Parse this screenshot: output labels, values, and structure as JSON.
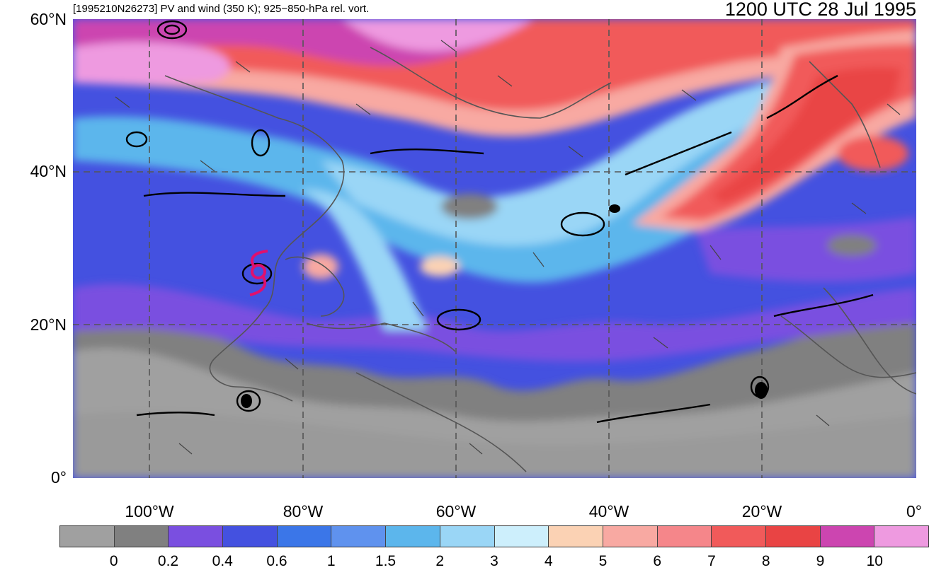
{
  "header": {
    "subtitle": "[1995210N26273] PV and wind (350 K); 925−850-hPa rel. vort.",
    "valid_time": "1200 UTC 28 Jul 1995"
  },
  "map": {
    "lat_labels": [
      "60°N",
      "40°N",
      "20°N",
      "0°"
    ],
    "lon_labels": [
      "100°W",
      "80°W",
      "60°W",
      "40°W",
      "20°W",
      "0°"
    ],
    "storm_marker_icon": "tropical-storm-icon",
    "storm_color": "#e0106e"
  },
  "colorbar": {
    "colors": [
      "#a0a0a0",
      "#808080",
      "#7a4fe0",
      "#4451e0",
      "#3b76e8",
      "#5f92ee",
      "#5cb6ec",
      "#9ad6f6",
      "#cdeffc",
      "#fbd2b4",
      "#f8a9a2",
      "#f5868a",
      "#f15a5a",
      "#e94444",
      "#cc45b0",
      "#ee9ae0"
    ],
    "labels": [
      "0",
      "0.2",
      "0.4",
      "0.6",
      "1",
      "1.5",
      "2",
      "3",
      "4",
      "5",
      "6",
      "7",
      "8",
      "9",
      "10"
    ]
  }
}
